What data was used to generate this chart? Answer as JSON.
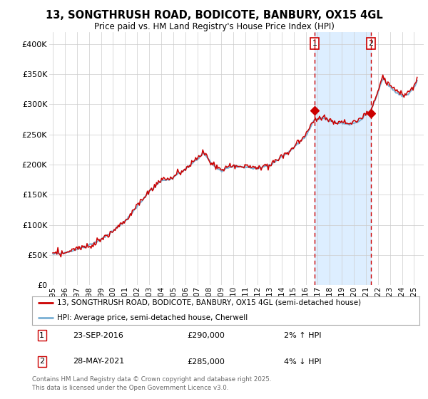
{
  "title": "13, SONGTHRUSH ROAD, BODICOTE, BANBURY, OX15 4GL",
  "subtitle": "Price paid vs. HM Land Registry's House Price Index (HPI)",
  "legend_line1": "13, SONGTHRUSH ROAD, BODICOTE, BANBURY, OX15 4GL (semi-detached house)",
  "legend_line2": "HPI: Average price, semi-detached house, Cherwell",
  "annotation1_date": "23-SEP-2016",
  "annotation1_price": "£290,000",
  "annotation1_hpi": "2% ↑ HPI",
  "annotation2_date": "28-MAY-2021",
  "annotation2_price": "£285,000",
  "annotation2_hpi": "4% ↓ HPI",
  "footer": "Contains HM Land Registry data © Crown copyright and database right 2025.\nThis data is licensed under the Open Government Licence v3.0.",
  "hpi_color": "#7ab0d4",
  "price_color": "#cc0000",
  "shade_color": "#ddeeff",
  "annotation_vline_color": "#cc0000",
  "grid_color": "#cccccc",
  "background_color": "#ffffff",
  "ylim": [
    0,
    420000
  ],
  "yticks": [
    0,
    50000,
    100000,
    150000,
    200000,
    250000,
    300000,
    350000,
    400000
  ],
  "ytick_labels": [
    "£0",
    "£50K",
    "£100K",
    "£150K",
    "£200K",
    "£250K",
    "£300K",
    "£350K",
    "£400K"
  ],
  "sale1_year": 2016.73,
  "sale1_value": 290000,
  "sale2_year": 2021.41,
  "sale2_value": 285000,
  "xlim_left": 1994.7,
  "xlim_right": 2025.8
}
